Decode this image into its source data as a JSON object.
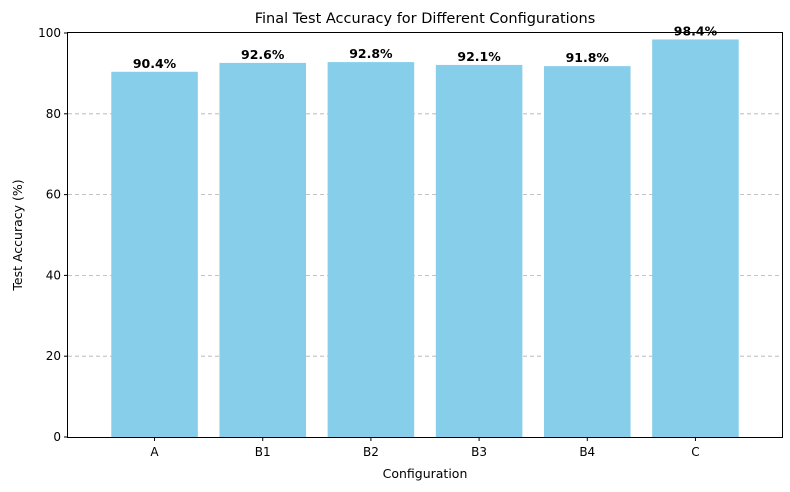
{
  "chart_data": {
    "type": "bar",
    "title": "Final Test Accuracy for Different Configurations",
    "xlabel": "Configuration",
    "ylabel": "Test Accuracy (%)",
    "categories": [
      "A",
      "B1",
      "B2",
      "B3",
      "B4",
      "C"
    ],
    "values": [
      90.4,
      92.6,
      92.8,
      92.1,
      91.8,
      98.4
    ],
    "data_labels": [
      "90.4%",
      "92.6%",
      "92.8%",
      "92.1%",
      "91.8%",
      "98.4%"
    ],
    "ylim": [
      0,
      100
    ],
    "yticks": [
      "0",
      "20",
      "40",
      "60",
      "80",
      "100"
    ],
    "ytick_values": [
      0,
      20,
      40,
      60,
      80,
      100
    ],
    "grid": "y-dashed",
    "bar_color": "#87ceeb"
  }
}
